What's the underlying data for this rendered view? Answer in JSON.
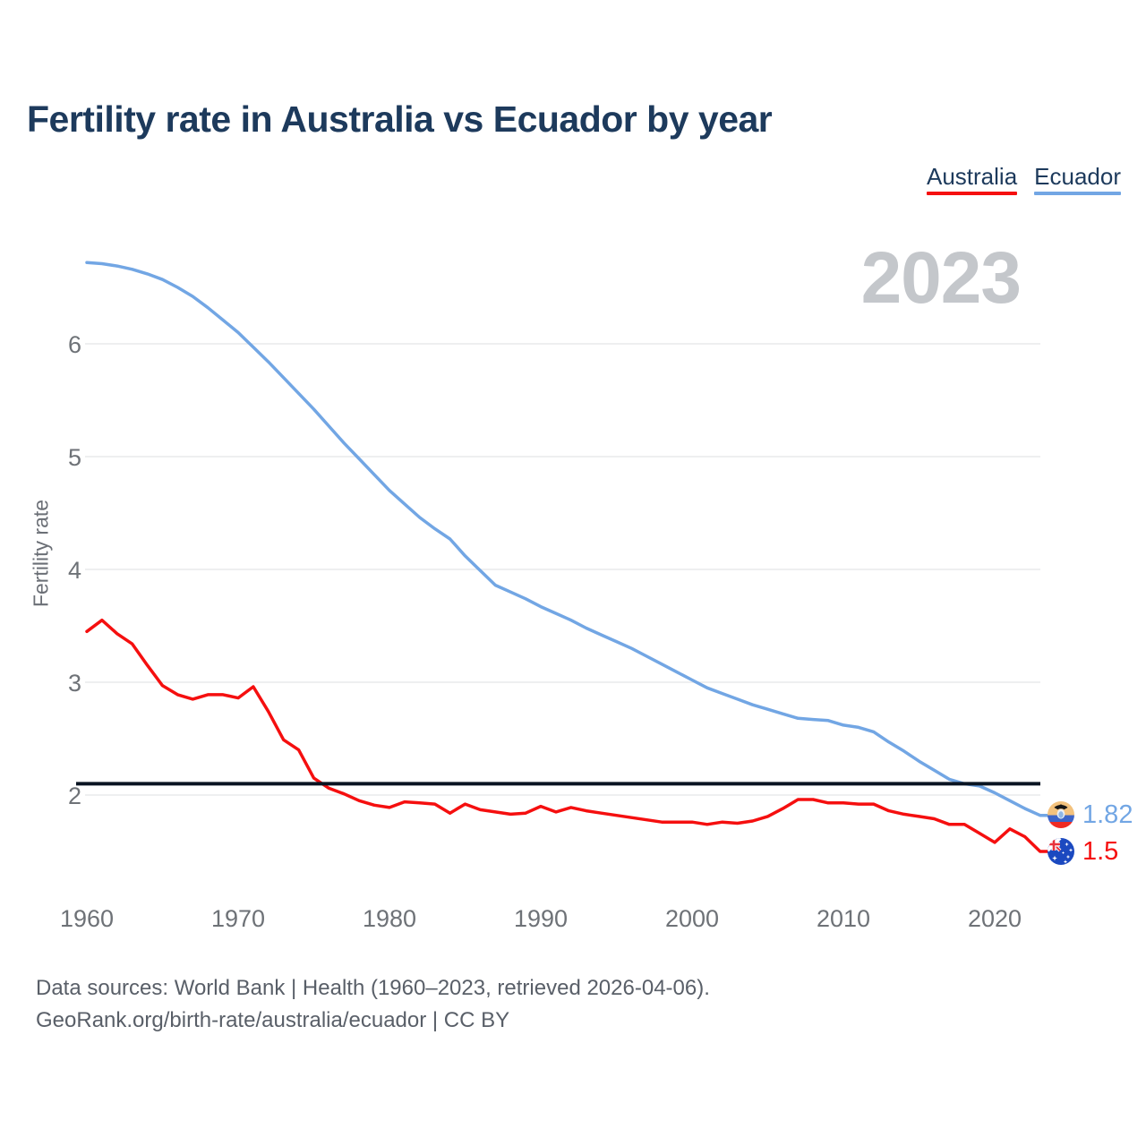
{
  "page": {
    "title": "Fertility rate in Australia vs Ecuador by year",
    "watermark_year": "2023",
    "footer_line1": "Data sources: World Bank | Health (1960–2023, retrieved 2026-04-06).",
    "footer_line2": "GeoRank.org/birth-rate/australia/ecuador | CC BY"
  },
  "legend": {
    "items": [
      {
        "label": "Australia",
        "color": "#f50f0f"
      },
      {
        "label": "Ecuador",
        "color": "#72a6e4"
      }
    ]
  },
  "end_labels": {
    "ecuador": {
      "value": "1.82",
      "icon": "ecuador-flag",
      "color": "#72a6e4"
    },
    "australia": {
      "value": "1.5",
      "icon": "australia-flag",
      "color": "#f50f0f"
    }
  },
  "chart_data": {
    "type": "line",
    "title": "Fertility rate in Australia vs Ecuador by year",
    "xlabel": "",
    "ylabel": "Fertility rate",
    "xlim": [
      1960,
      2023
    ],
    "ylim": [
      1.3,
      6.9
    ],
    "grid": "horizontal",
    "legend_position": "top-right",
    "y_ticks": [
      2,
      3,
      4,
      5,
      6
    ],
    "x_ticks": [
      1960,
      1970,
      1980,
      1990,
      2000,
      2010,
      2020
    ],
    "reference_line": {
      "value": 2.1,
      "color": "#0a1422"
    },
    "years": [
      1960,
      1961,
      1962,
      1963,
      1964,
      1965,
      1966,
      1967,
      1968,
      1969,
      1970,
      1971,
      1972,
      1973,
      1974,
      1975,
      1976,
      1977,
      1978,
      1979,
      1980,
      1981,
      1982,
      1983,
      1984,
      1985,
      1986,
      1987,
      1988,
      1989,
      1990,
      1991,
      1992,
      1993,
      1994,
      1995,
      1996,
      1997,
      1998,
      1999,
      2000,
      2001,
      2002,
      2003,
      2004,
      2005,
      2006,
      2007,
      2008,
      2009,
      2010,
      2011,
      2012,
      2013,
      2014,
      2015,
      2016,
      2017,
      2018,
      2019,
      2020,
      2021,
      2022,
      2023
    ],
    "series": [
      {
        "name": "Australia",
        "color": "#f50f0f",
        "end_label": "1.5",
        "values": [
          3.45,
          3.55,
          3.43,
          3.34,
          3.15,
          2.97,
          2.89,
          2.85,
          2.89,
          2.89,
          2.86,
          2.96,
          2.74,
          2.49,
          2.4,
          2.15,
          2.06,
          2.01,
          1.95,
          1.91,
          1.89,
          1.94,
          1.93,
          1.92,
          1.84,
          1.92,
          1.87,
          1.85,
          1.83,
          1.84,
          1.9,
          1.85,
          1.89,
          1.86,
          1.84,
          1.82,
          1.8,
          1.78,
          1.76,
          1.76,
          1.76,
          1.74,
          1.76,
          1.75,
          1.77,
          1.81,
          1.88,
          1.96,
          1.96,
          1.93,
          1.93,
          1.92,
          1.92,
          1.86,
          1.83,
          1.81,
          1.79,
          1.74,
          1.74,
          1.66,
          1.58,
          1.7,
          1.63,
          1.5
        ]
      },
      {
        "name": "Ecuador",
        "color": "#72a6e4",
        "end_label": "1.82",
        "values": [
          6.72,
          6.71,
          6.69,
          6.66,
          6.62,
          6.57,
          6.5,
          6.42,
          6.32,
          6.21,
          6.1,
          5.97,
          5.84,
          5.7,
          5.56,
          5.42,
          5.27,
          5.12,
          4.98,
          4.84,
          4.7,
          4.58,
          4.46,
          4.36,
          4.27,
          4.12,
          3.99,
          3.86,
          3.8,
          3.74,
          3.67,
          3.61,
          3.55,
          3.48,
          3.42,
          3.36,
          3.3,
          3.23,
          3.16,
          3.09,
          3.02,
          2.95,
          2.9,
          2.85,
          2.8,
          2.76,
          2.72,
          2.68,
          2.67,
          2.66,
          2.62,
          2.6,
          2.56,
          2.47,
          2.39,
          2.3,
          2.22,
          2.14,
          2.1,
          2.08,
          2.02,
          1.95,
          1.88,
          1.82
        ]
      }
    ]
  }
}
